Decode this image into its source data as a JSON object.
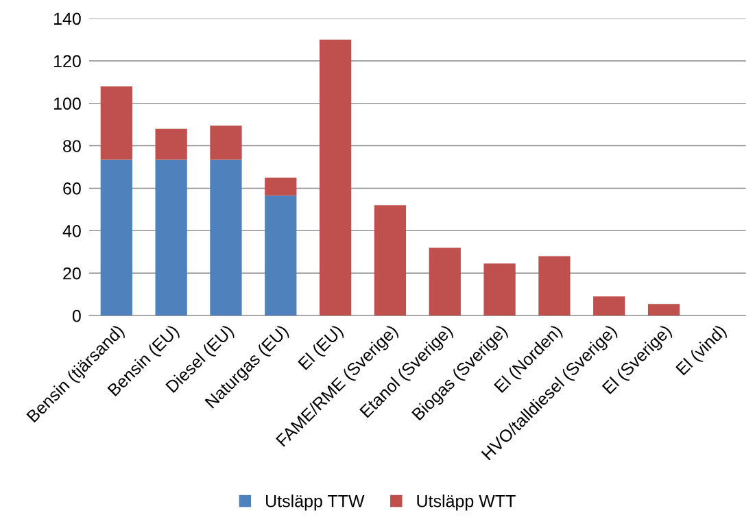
{
  "chart_data": {
    "type": "bar",
    "stacked": true,
    "categories": [
      "Bensin (tjärsand)",
      "Bensin (EU)",
      "Diesel (EU)",
      "Naturgas (EU)",
      "El (EU)",
      "FAME/RME (Sverige)",
      "Etanol (Sverige)",
      "Biogas (Sverige)",
      "El (Norden)",
      "HVO/talldiesel (Sverige)",
      "El (Sverige)",
      "El (vind)"
    ],
    "series": [
      {
        "name": "Utsläpp TTW",
        "color": "#4f81bd",
        "values": [
          73.5,
          73.5,
          73.5,
          56.5,
          0,
          0,
          0,
          0,
          0,
          0,
          0,
          0
        ]
      },
      {
        "name": "Utsläpp WTT",
        "color": "#c0504d",
        "values": [
          34.5,
          14.5,
          16,
          8.5,
          130,
          52,
          32,
          24.5,
          28,
          9,
          5.5,
          0
        ]
      }
    ],
    "ylim": [
      0,
      140
    ],
    "yticks": [
      0,
      20,
      40,
      60,
      80,
      100,
      120,
      140
    ],
    "grid": "y",
    "legend": "bottom"
  }
}
